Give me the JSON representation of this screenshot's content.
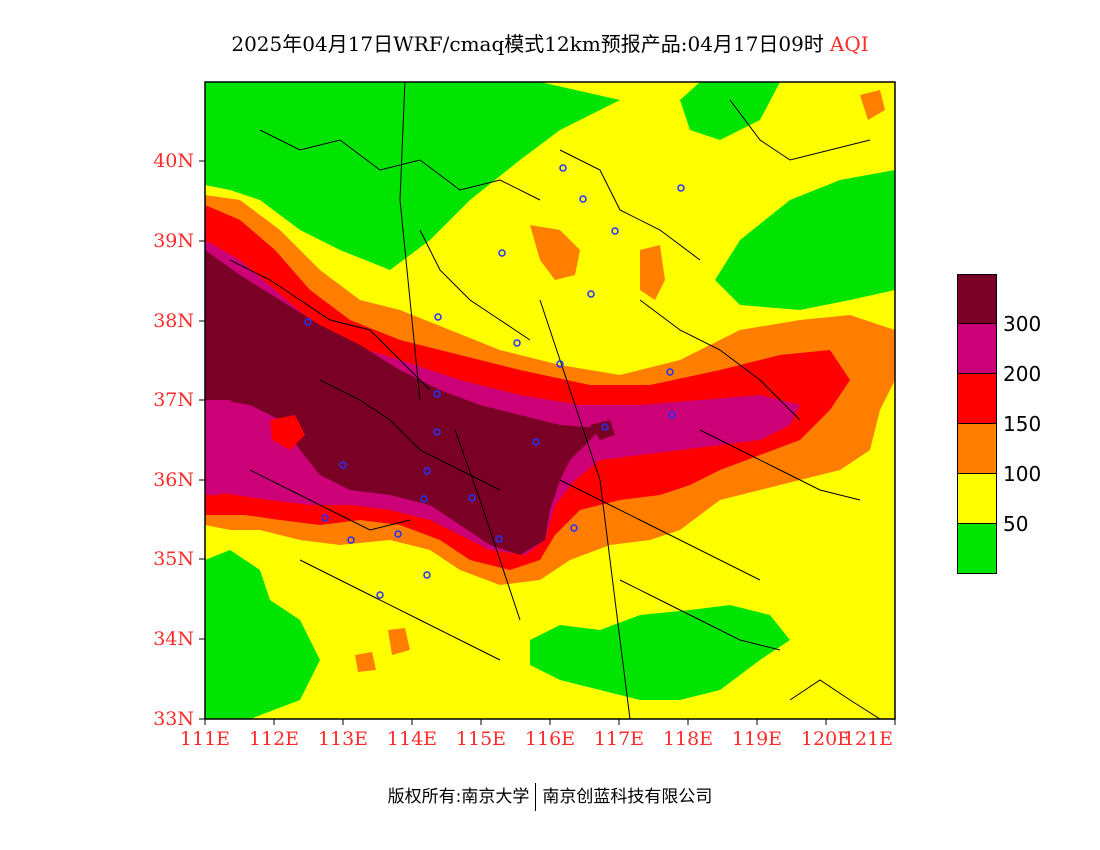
{
  "title": {
    "main": "2025年04月17日WRF/cmaq模式12km预报产品:04月17日09时",
    "product": "AQI"
  },
  "map": {
    "lat_ticks": [
      "40N",
      "39N",
      "38N",
      "37N",
      "36N",
      "35N",
      "34N",
      "33N"
    ],
    "lon_ticks": [
      "111E",
      "112E",
      "113E",
      "114E",
      "115E",
      "116E",
      "117E",
      "118E",
      "119E",
      "120E",
      "121E"
    ],
    "tick_color": "#ff2a2a"
  },
  "legend": {
    "colors": [
      "#7b0026",
      "#cc0077",
      "#ff0000",
      "#ff7e00",
      "#ffff00",
      "#00e400"
    ],
    "tick_labels": [
      "300",
      "200",
      "150",
      "100",
      "50"
    ]
  },
  "footer": {
    "copyright": "版权所有:南京大学",
    "company": "南京创蓝科技有限公司"
  }
}
